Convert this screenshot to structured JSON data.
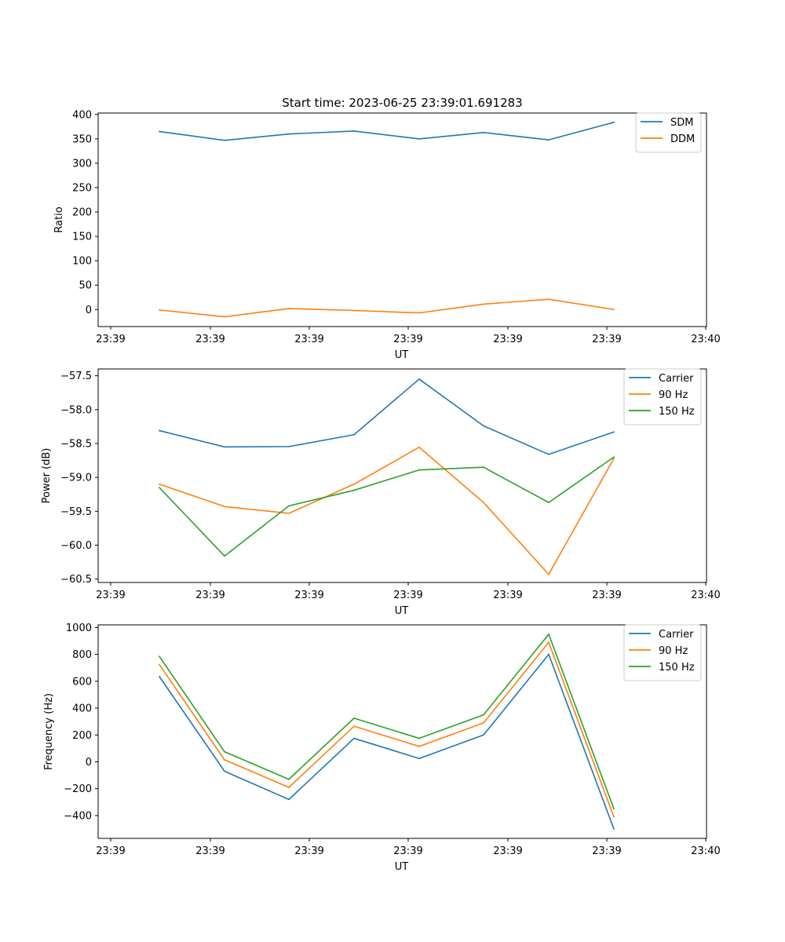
{
  "figure": {
    "title": "Start time: 2023-06-25 23:39:01.691283"
  },
  "chart_data": [
    {
      "type": "line",
      "title": "Start time: 2023-06-25 23:39:01.691283",
      "xlabel": "UT",
      "ylabel": "Ratio",
      "x_tick_labels": [
        "23:39",
        "23:39",
        "23:39",
        "23:39",
        "23:39",
        "23:39",
        "23:40"
      ],
      "y_ticks": [
        0,
        50,
        100,
        150,
        200,
        250,
        300,
        350,
        400
      ],
      "y_tick_labels": [
        "0",
        "50",
        "100",
        "150",
        "200",
        "250",
        "300",
        "350",
        "400"
      ],
      "ylim": [
        -35,
        403
      ],
      "grid": false,
      "legend_position": "top-right",
      "series": [
        {
          "name": "SDM",
          "color": "#1f77b4",
          "values": [
            365,
            347,
            360,
            366,
            350,
            363,
            348,
            384
          ]
        },
        {
          "name": "DDM",
          "color": "#ff7f0e",
          "values": [
            -1,
            -15,
            2,
            -2,
            -7,
            11,
            21,
            0
          ]
        }
      ]
    },
    {
      "type": "line",
      "xlabel": "UT",
      "ylabel": "Power (dB)",
      "x_tick_labels": [
        "23:39",
        "23:39",
        "23:39",
        "23:39",
        "23:39",
        "23:39",
        "23:40"
      ],
      "y_ticks": [
        -60.5,
        -60.0,
        -59.5,
        -59.0,
        -58.5,
        -58.0,
        -57.5
      ],
      "y_tick_labels": [
        "−60.5",
        "−60.0",
        "−59.5",
        "−59.0",
        "−58.5",
        "−58.0",
        "−57.5"
      ],
      "ylim": [
        -60.55,
        -57.4
      ],
      "grid": false,
      "legend_position": "top-right",
      "series": [
        {
          "name": "Carrier",
          "color": "#1f77b4",
          "values": [
            -58.31,
            -58.55,
            -58.545,
            -58.37,
            -57.55,
            -58.24,
            -58.66,
            -58.33
          ]
        },
        {
          "name": "90 Hz",
          "color": "#ff7f0e",
          "values": [
            -59.1,
            -59.43,
            -59.53,
            -59.1,
            -58.555,
            -59.37,
            -60.43,
            -58.72
          ]
        },
        {
          "name": "150 Hz",
          "color": "#2ca02c",
          "values": [
            -59.15,
            -60.16,
            -59.42,
            -59.19,
            -58.89,
            -58.85,
            -59.37,
            -58.7
          ]
        }
      ]
    },
    {
      "type": "line",
      "xlabel": "UT",
      "ylabel": "Frequency (Hz)",
      "x_tick_labels": [
        "23:39",
        "23:39",
        "23:39",
        "23:39",
        "23:39",
        "23:39",
        "23:40"
      ],
      "y_ticks": [
        -400,
        -200,
        0,
        200,
        400,
        600,
        800,
        1000
      ],
      "y_tick_labels": [
        "−400",
        "−200",
        "0",
        "200",
        "400",
        "600",
        "800",
        "1000"
      ],
      "ylim": [
        -570,
        1020
      ],
      "grid": false,
      "legend_position": "top-right",
      "series": [
        {
          "name": "Carrier",
          "color": "#1f77b4",
          "values": [
            635,
            -70,
            -280,
            175,
            25,
            200,
            800,
            -500
          ]
        },
        {
          "name": "90 Hz",
          "color": "#ff7f0e",
          "values": [
            725,
            15,
            -190,
            265,
            115,
            290,
            890,
            -410
          ]
        },
        {
          "name": "150 Hz",
          "color": "#2ca02c",
          "values": [
            785,
            75,
            -130,
            325,
            175,
            350,
            950,
            -350
          ]
        }
      ]
    }
  ]
}
